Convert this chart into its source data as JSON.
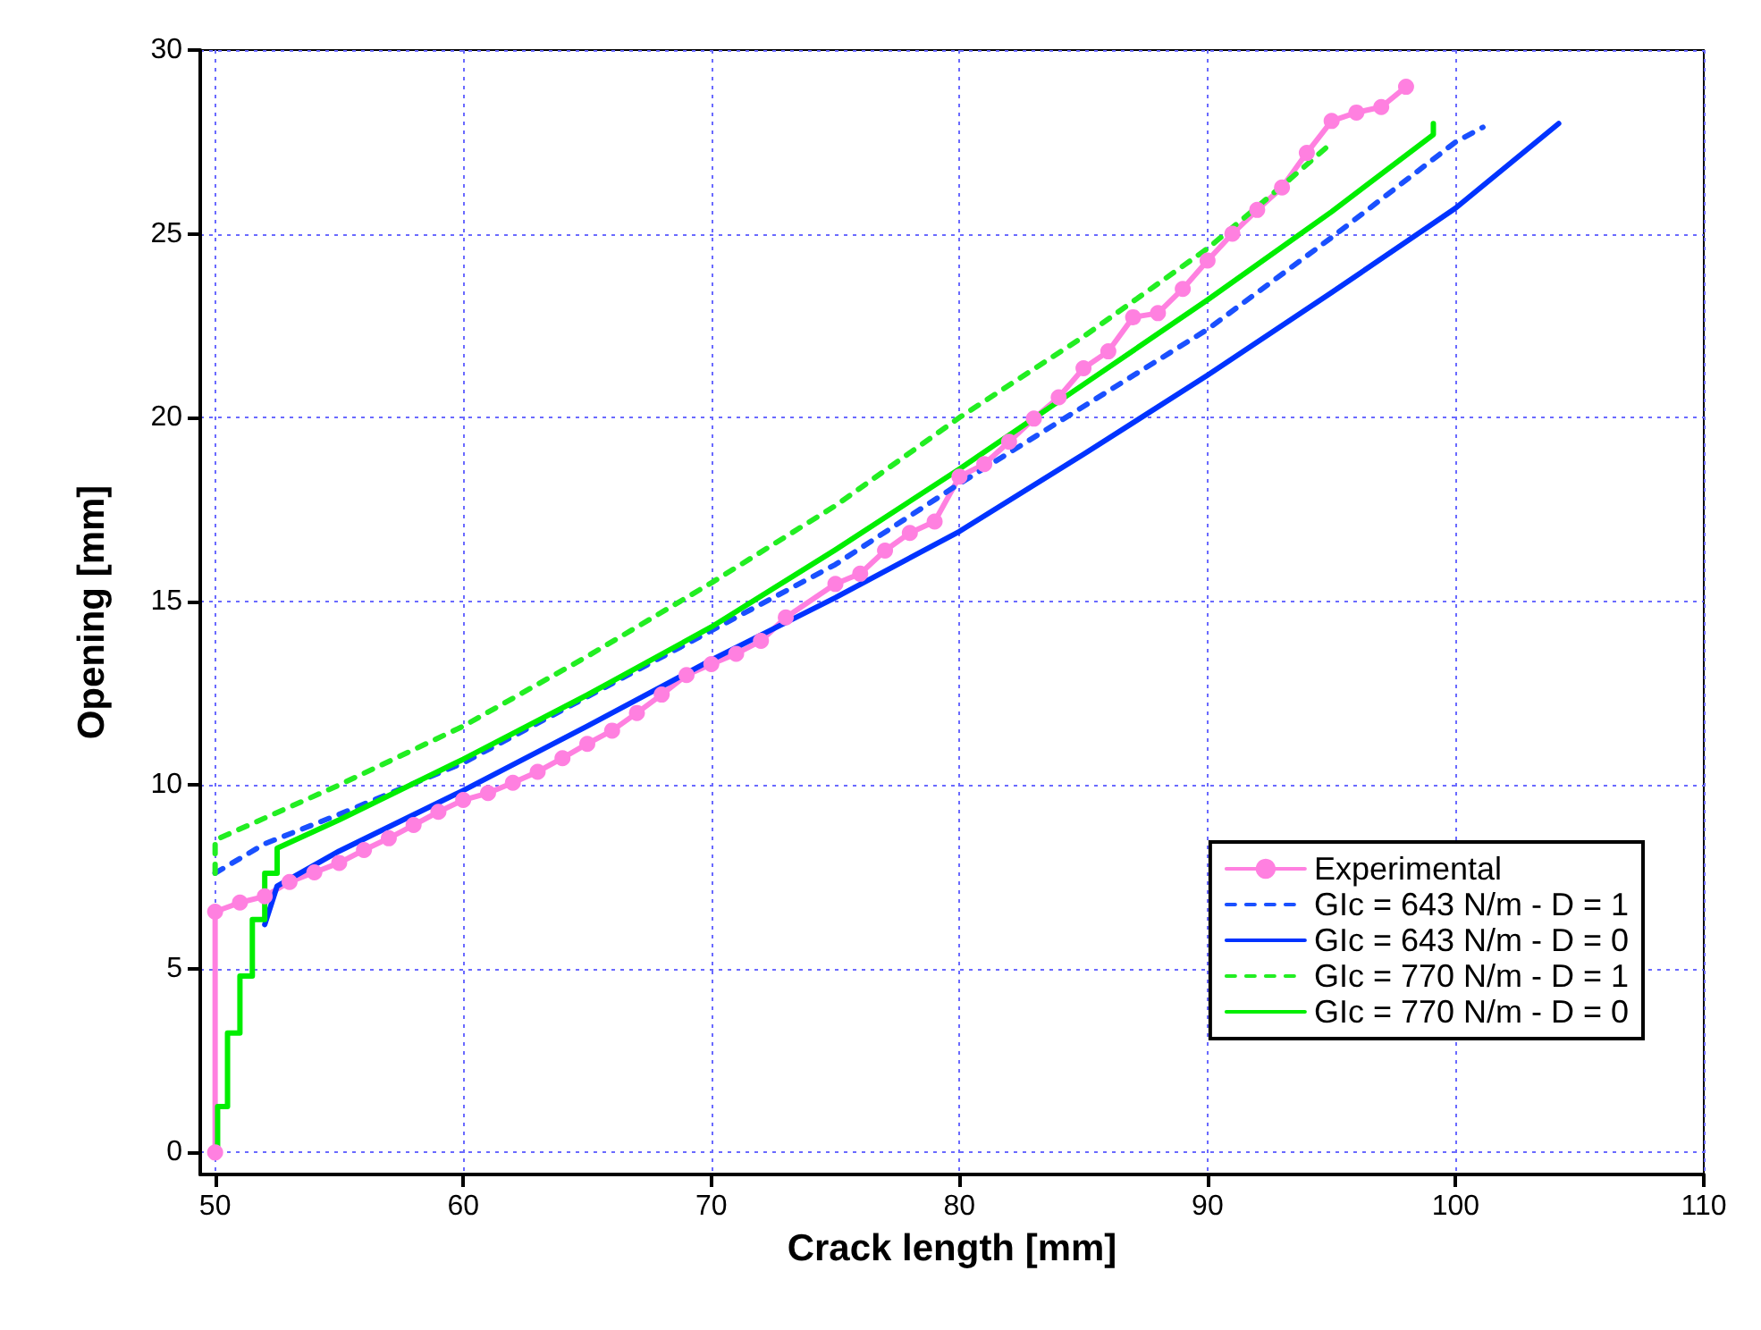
{
  "chart_data": {
    "type": "line",
    "xlabel": "Crack length [mm]",
    "ylabel": "Opening [mm]",
    "xlim": [
      49.4,
      110
    ],
    "xticks": [
      50,
      60,
      70,
      80,
      90,
      100,
      110
    ],
    "ylim": [
      -0.6,
      30
    ],
    "yticks": [
      0,
      5,
      10,
      15,
      20,
      25,
      30
    ],
    "grid": true,
    "legend": "bottom right",
    "series": [
      {
        "name": "Experimental",
        "color": "#ff80e0",
        "marker": "circle",
        "line_style": "solid",
        "x": [
          50,
          50,
          51,
          52,
          53,
          54,
          55,
          56,
          57,
          58,
          59,
          60,
          61,
          62,
          63,
          64,
          65,
          66,
          67,
          68,
          69,
          70,
          71,
          72,
          73,
          75,
          76,
          77,
          78,
          79,
          80,
          81,
          82,
          83,
          84,
          85,
          86,
          87,
          88,
          89,
          90,
          91,
          92,
          93,
          94,
          95,
          96,
          97,
          98
        ],
        "values": [
          0,
          6.55,
          6.8,
          6.97,
          7.36,
          7.62,
          7.88,
          8.23,
          8.55,
          8.91,
          9.27,
          9.59,
          9.78,
          10.06,
          10.36,
          10.73,
          11.12,
          11.48,
          11.96,
          12.46,
          12.99,
          13.29,
          13.57,
          13.92,
          14.56,
          15.47,
          15.75,
          16.38,
          16.86,
          17.17,
          18.39,
          18.73,
          19.34,
          19.97,
          20.55,
          21.34,
          21.8,
          22.73,
          22.84,
          23.5,
          24.27,
          25.0,
          25.65,
          26.26,
          27.2,
          28.07,
          28.3,
          28.45,
          29.0
        ]
      },
      {
        "name": "GIc = 643 N/m - D = 1",
        "color": "#1a50ff",
        "marker": "none",
        "line_style": "dashed",
        "x": [
          50,
          52,
          55,
          60,
          65,
          70,
          75,
          80,
          85,
          90,
          95,
          100,
          101.1
        ],
        "values": [
          7.6,
          8.4,
          9.2,
          10.6,
          12.4,
          14.2,
          16.0,
          18.2,
          20.3,
          22.4,
          24.9,
          27.5,
          27.9
        ]
      },
      {
        "name": "GIc = 643 N/m - D = 0",
        "color": "#0033ff",
        "marker": "none",
        "line_style": "solid",
        "x": [
          52,
          52.5,
          55,
          60,
          65,
          70,
          75,
          80,
          85,
          90,
          95,
          100,
          104.15
        ],
        "values": [
          6.2,
          7.25,
          8.2,
          9.85,
          11.6,
          13.4,
          15.1,
          16.9,
          19.0,
          21.15,
          23.4,
          25.7,
          28.0
        ]
      },
      {
        "name": "GIc = 770 N/m - D = 1",
        "color": "#22ee22",
        "marker": "none",
        "line_style": "dashed",
        "x": [
          50,
          50,
          55,
          60,
          65,
          70,
          75,
          80,
          85,
          90,
          93,
          95.05
        ],
        "values": [
          7.6,
          8.5,
          10.0,
          11.6,
          13.5,
          15.5,
          17.6,
          20.0,
          22.2,
          24.6,
          26.3,
          27.5
        ]
      },
      {
        "name": "GIc = 770 N/m - D = 0",
        "color": "#00ee00",
        "marker": "none",
        "line_style": "solid",
        "x": [
          50,
          50.1,
          50.1,
          50.5,
          50.5,
          51,
          51,
          51.5,
          51.5,
          52,
          52,
          52.5,
          52.5,
          55,
          60,
          65,
          70,
          75,
          80,
          85,
          90,
          95,
          99.1,
          99.1
        ],
        "values": [
          0,
          0,
          1.25,
          1.25,
          3.25,
          3.25,
          4.8,
          4.8,
          6.34,
          6.34,
          7.6,
          7.6,
          8.28,
          9.05,
          10.7,
          12.45,
          14.3,
          16.4,
          18.6,
          20.9,
          23.2,
          25.6,
          27.7,
          28.0
        ]
      }
    ]
  }
}
